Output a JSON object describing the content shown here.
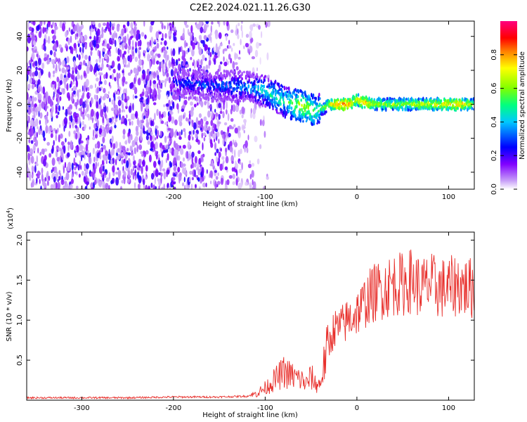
{
  "title": "C2E2.2024.021.11.26.G30",
  "chart_data": [
    {
      "type": "heatmap",
      "xlabel": "Height of straight line (km)",
      "ylabel": "Frequency (Hz)",
      "xlim": [
        -360,
        128
      ],
      "ylim": [
        -50,
        49
      ],
      "xticks": [
        -300,
        -200,
        -100,
        0,
        100
      ],
      "yticks": [
        -40,
        -20,
        0,
        20,
        40
      ],
      "colorbar": {
        "label": "Normalized spectral amplitude",
        "range": [
          0,
          1
        ],
        "ticks": [
          "0.0",
          "0.2",
          "0.4",
          "0.6",
          "0.8"
        ],
        "colormap": [
          "#ffffff",
          "#c8a0f8",
          "#8000ff",
          "#0000ff",
          "#00c8ff",
          "#00ff80",
          "#80ff00",
          "#ffff00",
          "#ff8000",
          "#ff0000",
          "#ff0080"
        ]
      },
      "noise_region": {
        "x_from": -360,
        "x_to": -115,
        "description_level": 0.3
      },
      "ridge": {
        "x": [
          -200,
          -180,
          -160,
          -140,
          -120,
          -100,
          -90,
          -80,
          -70,
          -60,
          -50,
          -45,
          -40,
          -35,
          -30,
          -20,
          -10,
          -5,
          0,
          5,
          10,
          20,
          40,
          60,
          80,
          100,
          110,
          120,
          128
        ],
        "y": [
          12,
          12,
          11,
          11,
          10,
          8,
          5,
          2,
          0,
          -1,
          -3,
          -4,
          -3,
          -2,
          0,
          0,
          0,
          1,
          3,
          1,
          1,
          0,
          0,
          0,
          0,
          0,
          0,
          0,
          0
        ],
        "intensity": [
          0.25,
          0.3,
          0.3,
          0.35,
          0.35,
          0.45,
          0.5,
          0.5,
          0.55,
          0.65,
          0.6,
          0.55,
          0.55,
          0.6,
          0.7,
          0.85,
          0.85,
          0.75,
          0.7,
          0.8,
          0.8,
          0.65,
          0.65,
          0.65,
          0.7,
          0.75,
          0.8,
          0.7,
          0.65
        ]
      }
    },
    {
      "type": "line",
      "xlabel": "Height of straight line (km)",
      "ylabel": "SNR (10 * v/v)",
      "yscale_label": "(x10",
      "yscale_exp": "4",
      "yscale_close": ")",
      "xlim": [
        -360,
        128
      ],
      "ylim": [
        0,
        2.1
      ],
      "xticks": [
        -300,
        -200,
        -100,
        0,
        100
      ],
      "yticks": [
        "0.5",
        "1.0",
        "1.5",
        "2.0"
      ],
      "color": "#e8302c",
      "series": [
        {
          "x": [
            -360,
            -300,
            -250,
            -200,
            -150,
            -120,
            -110,
            -100,
            -90,
            -80,
            -70,
            -60,
            -55,
            -50,
            -45,
            -40,
            -35,
            -30,
            -25,
            -20,
            -15,
            -10,
            -5,
            0,
            5,
            10,
            15,
            20,
            30,
            40,
            50,
            60,
            70,
            80,
            90,
            100,
            110,
            120,
            128
          ],
          "values": [
            0.03,
            0.03,
            0.03,
            0.04,
            0.04,
            0.05,
            0.08,
            0.15,
            0.25,
            0.35,
            0.3,
            0.25,
            0.2,
            0.3,
            0.2,
            0.2,
            0.5,
            0.7,
            0.9,
            0.9,
            0.95,
            1.0,
            1.05,
            1.1,
            1.15,
            1.25,
            1.3,
            1.35,
            1.4,
            1.45,
            1.45,
            1.5,
            1.4,
            1.45,
            1.4,
            1.4,
            1.45,
            1.4,
            1.4
          ]
        }
      ]
    }
  ]
}
